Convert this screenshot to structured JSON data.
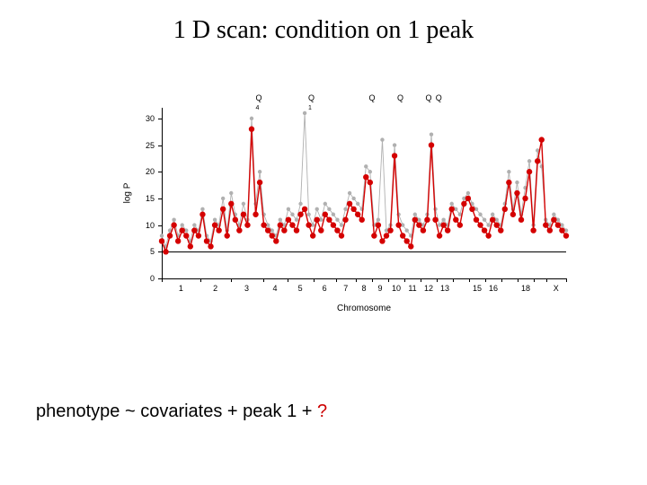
{
  "title": "1 D scan: condition on 1 peak",
  "formula_parts": {
    "prefix": "phenotype ~ covariates + peak 1 + ",
    "question": " ?"
  },
  "chart": {
    "type": "line-scatter",
    "ylabel": "log P",
    "xlabel": "Chromosome",
    "background_color": "#ffffff",
    "axis_color": "#000000",
    "ylim": [
      0,
      32
    ],
    "yticks": [
      0,
      5,
      10,
      15,
      20,
      25,
      30
    ],
    "threshold": 5,
    "q_labels": [
      {
        "x": 24,
        "label": "Q",
        "sub": "4"
      },
      {
        "x": 37,
        "label": "Q",
        "sub": "1"
      },
      {
        "x": 52,
        "label": "Q",
        "sub": ""
      },
      {
        "x": 59,
        "label": "Q",
        "sub": ""
      },
      {
        "x": 66,
        "label": "Q",
        "sub": ""
      },
      {
        "x": 68.5,
        "label": "Q",
        "sub": ""
      }
    ],
    "chrom_breaks": [
      0,
      9.5,
      17,
      25,
      31,
      37.5,
      43,
      48,
      52,
      56,
      60,
      64,
      68,
      72,
      76,
      80,
      84,
      88,
      92,
      95,
      100
    ],
    "chrom_labels": [
      "1",
      "2",
      "3",
      "4",
      "5",
      "6",
      "7",
      "8",
      "9",
      "10",
      "11",
      "12",
      "13",
      "",
      "15",
      "16",
      "",
      "18",
      "",
      "X"
    ],
    "gray": {
      "color": "#b0b0b0",
      "line_width": 0.9,
      "marker_size": 2.2,
      "y": [
        8,
        6,
        9,
        11,
        8,
        10,
        9,
        7,
        10,
        9,
        13,
        8,
        7,
        11,
        10,
        15,
        9,
        16,
        12,
        10,
        14,
        11,
        30,
        14,
        20,
        12,
        10,
        9,
        8,
        11,
        10,
        13,
        12,
        11,
        14,
        31,
        12,
        10,
        13,
        11,
        14,
        13,
        12,
        11,
        10,
        13,
        16,
        15,
        14,
        13,
        21,
        20,
        10,
        11,
        26,
        9,
        10,
        25,
        12,
        10,
        9,
        8,
        12,
        11,
        10,
        12,
        27,
        13,
        10,
        11,
        10,
        14,
        13,
        12,
        15,
        16,
        14,
        13,
        12,
        11,
        10,
        12,
        11,
        10,
        14,
        20,
        13,
        18,
        12,
        17,
        22,
        10,
        24,
        21,
        11,
        10,
        12,
        11,
        10,
        9
      ]
    },
    "red": {
      "color": "#d40000",
      "line_width": 1.4,
      "marker_size": 3.2,
      "y": [
        7,
        5,
        8,
        10,
        7,
        9,
        8,
        6,
        9,
        8,
        12,
        7,
        6,
        10,
        9,
        13,
        8,
        14,
        11,
        9,
        12,
        10,
        28,
        12,
        18,
        10,
        9,
        8,
        7,
        10,
        9,
        11,
        10,
        9,
        12,
        13,
        10,
        8,
        11,
        9,
        12,
        11,
        10,
        9,
        8,
        11,
        14,
        13,
        12,
        11,
        19,
        18,
        8,
        10,
        7,
        8,
        9,
        23,
        10,
        8,
        7,
        6,
        11,
        10,
        9,
        11,
        25,
        11,
        8,
        10,
        9,
        13,
        11,
        10,
        14,
        15,
        13,
        11,
        10,
        9,
        8,
        11,
        10,
        9,
        13,
        18,
        12,
        16,
        11,
        15,
        20,
        9,
        22,
        26,
        10,
        9,
        11,
        10,
        9,
        8
      ]
    }
  }
}
